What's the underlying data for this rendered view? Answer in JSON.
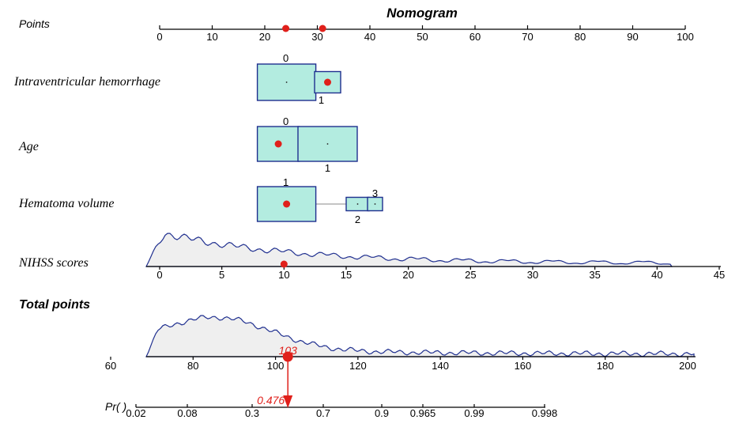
{
  "chart_data": {
    "type": "nomogram",
    "title": "Nomogram",
    "points_axis": {
      "label": "Points",
      "ticks": [
        0,
        10,
        20,
        30,
        40,
        50,
        60,
        70,
        80,
        90,
        100
      ],
      "marked_points": [
        24,
        31
      ]
    },
    "variables": [
      {
        "name": "Intraventricular hemorrhage",
        "levels": [
          {
            "label": "0",
            "points": 24
          },
          {
            "label": "1",
            "points": 31
          }
        ],
        "selected": "1"
      },
      {
        "name": "Age",
        "levels": [
          {
            "label": "0",
            "points": 24
          },
          {
            "label": "1",
            "points": 32
          }
        ],
        "selected": "0"
      },
      {
        "name": "Hematoma volume",
        "levels": [
          {
            "label": "1",
            "points": 24
          },
          {
            "label": "2",
            "points": 38
          },
          {
            "label": "3",
            "points": 41
          }
        ],
        "selected": "1"
      }
    ],
    "continuous_variable": {
      "name": "NIHSS scores",
      "ticks": [
        0,
        5,
        10,
        15,
        20,
        25,
        30,
        35,
        40,
        45
      ],
      "selected_value": 10
    },
    "total_points": {
      "label": "Total points",
      "ticks": [
        60,
        80,
        100,
        120,
        140,
        160,
        180,
        200
      ],
      "selected_value": 103,
      "selected_label": "103"
    },
    "probability": {
      "label": "Pr( )",
      "ticks": [
        "0.02",
        "0.08",
        "0.3",
        "0.7",
        "0.9",
        "0.965",
        "0.99",
        "0.998"
      ],
      "selected_label": "0.476"
    }
  }
}
